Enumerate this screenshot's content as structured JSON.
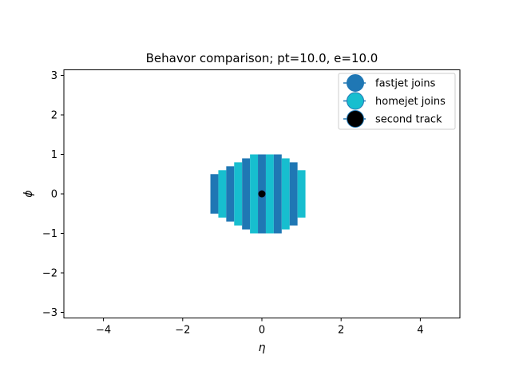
{
  "chart_data": {
    "type": "heatmap",
    "title": "Behavor comparison; pt=10.0, e=10.0",
    "xlabel": "η",
    "ylabel": "ϕ",
    "xlim": [
      -5,
      5
    ],
    "ylim": [
      -3.14159,
      3.14159
    ],
    "xticks": [
      -4,
      -2,
      0,
      2,
      4
    ],
    "yticks": [
      -3,
      -2,
      -1,
      0,
      1,
      2,
      3
    ],
    "xtick_labels": [
      "−4",
      "−2",
      "0",
      "2",
      "4"
    ],
    "ytick_labels": [
      "−3",
      "−2",
      "−1",
      "0",
      "1",
      "2",
      "3"
    ],
    "grid": false,
    "legend_position": "top-right",
    "cell_width": 0.2,
    "columns": [
      {
        "x": -1.2,
        "y0": -0.5,
        "y1": 0.5,
        "series": "fastjet joins"
      },
      {
        "x": -1.0,
        "y0": -0.6,
        "y1": 0.6,
        "series": "homejet joins"
      },
      {
        "x": -0.8,
        "y0": -0.7,
        "y1": 0.7,
        "series": "fastjet joins"
      },
      {
        "x": -0.6,
        "y0": -0.8,
        "y1": 0.8,
        "series": "homejet joins"
      },
      {
        "x": -0.4,
        "y0": -0.9,
        "y1": 0.9,
        "series": "fastjet joins"
      },
      {
        "x": -0.2,
        "y0": -1.0,
        "y1": 1.0,
        "series": "homejet joins"
      },
      {
        "x": 0.0,
        "y0": -1.0,
        "y1": 1.0,
        "series": "fastjet joins"
      },
      {
        "x": 0.2,
        "y0": -1.0,
        "y1": 1.0,
        "series": "homejet joins"
      },
      {
        "x": 0.4,
        "y0": -1.0,
        "y1": 1.0,
        "series": "fastjet joins"
      },
      {
        "x": 0.6,
        "y0": -0.9,
        "y1": 0.9,
        "series": "homejet joins"
      },
      {
        "x": 0.8,
        "y0": -0.8,
        "y1": 0.8,
        "series": "fastjet joins"
      },
      {
        "x": 1.0,
        "y0": -0.6,
        "y1": 0.6,
        "series": "homejet joins"
      }
    ],
    "points": [
      {
        "x": 0.0,
        "y": 0.0,
        "series": "second track"
      }
    ],
    "series": [
      {
        "name": "fastjet joins",
        "color": "#1f77b4",
        "marker": "circle"
      },
      {
        "name": "homejet joins",
        "color": "#17becf",
        "marker": "circle"
      },
      {
        "name": "second track",
        "color": "#000000",
        "marker": "circle"
      }
    ]
  }
}
